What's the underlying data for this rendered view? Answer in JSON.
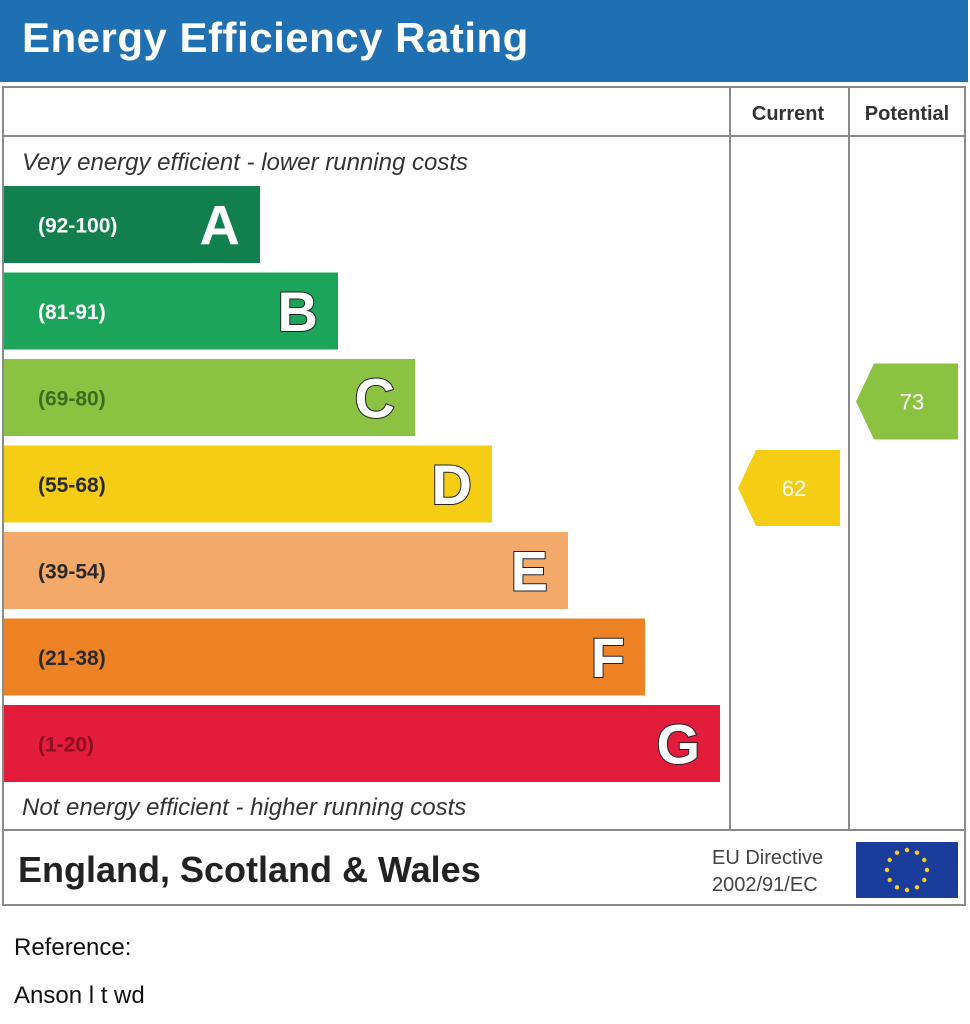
{
  "header": {
    "title": "Energy Efficiency Rating"
  },
  "columns": {
    "current": "Current",
    "potential": "Potential"
  },
  "captions": {
    "top": "Very energy efficient - lower running costs",
    "bottom": "Not energy efficient - higher running costs"
  },
  "footer": {
    "region": "England, Scotland & Wales",
    "directive_line1": "EU Directive",
    "directive_line2": "2002/91/EC"
  },
  "reference": {
    "label": "Reference:",
    "value": "Anson l t wd"
  },
  "chart_data": {
    "type": "bar",
    "categories": [
      "A",
      "B",
      "C",
      "D",
      "E",
      "F",
      "G"
    ],
    "ranges": [
      "(92-100)",
      "(81-91)",
      "(69-80)",
      "(55-68)",
      "(39-54)",
      "(21-38)",
      "(1-20)"
    ],
    "colors": [
      "#12804e",
      "#1ca45a",
      "#8cc242",
      "#f5cd15",
      "#f2a96a",
      "#ee8326",
      "#e21c3a"
    ],
    "current": {
      "value": 62,
      "band": "D",
      "color": "#f5cd15"
    },
    "potential": {
      "value": 73,
      "band": "C",
      "color": "#8cc242"
    }
  }
}
